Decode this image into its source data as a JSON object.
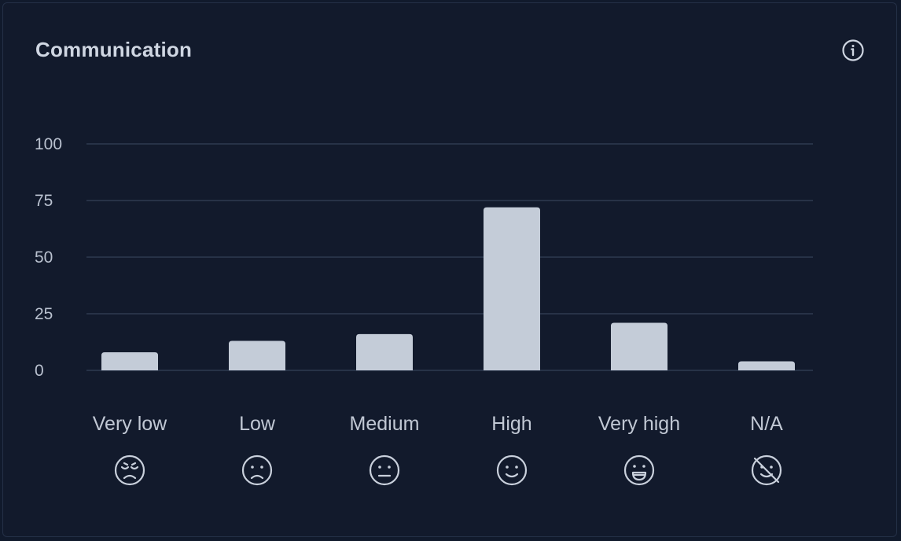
{
  "card": {
    "title": "Communication",
    "info_icon": "info-circle-icon"
  },
  "chart_data": {
    "type": "bar",
    "title": "Communication",
    "categories": [
      "Very low",
      "Low",
      "Medium",
      "High",
      "Very high",
      "N/A"
    ],
    "category_icons": [
      "sad-tired-face-icon",
      "frown-face-icon",
      "neutral-face-icon",
      "smile-face-icon",
      "laugh-face-icon",
      "no-face-icon"
    ],
    "values": [
      8,
      13,
      16,
      72,
      21,
      4
    ],
    "yticks": [
      0,
      25,
      50,
      75,
      100
    ],
    "ylim": [
      0,
      100
    ],
    "xlabel": "",
    "ylabel": "",
    "grid": true,
    "legend": false,
    "colors": {
      "bar": "#c4ccd8",
      "grid": "#2e3a50",
      "text": "#c1c8d4"
    }
  }
}
